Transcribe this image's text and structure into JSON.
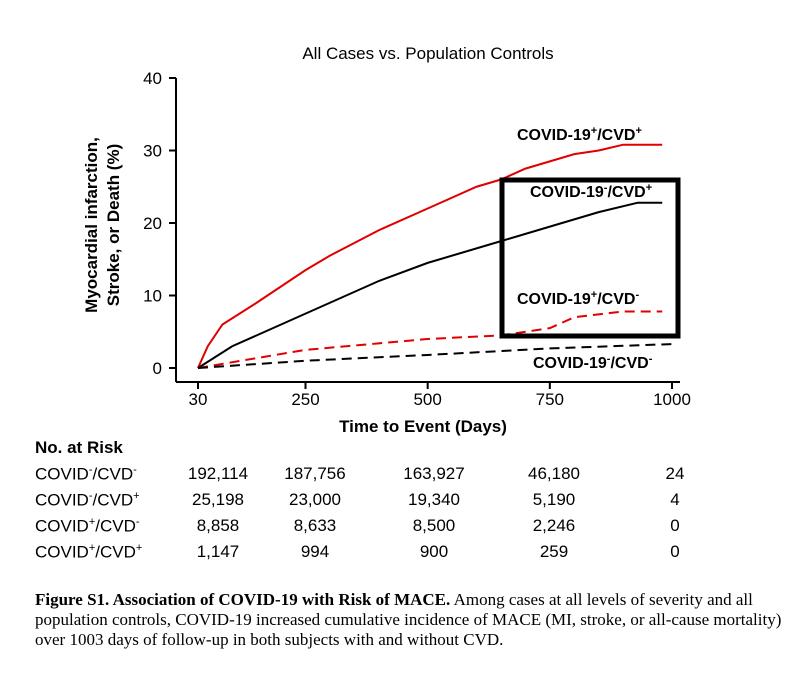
{
  "chart_data": {
    "type": "line",
    "title": "All Cases vs. Population Controls",
    "xlabel": "Time to Event (Days)",
    "ylabel_lines": [
      "Myocardial infarction,",
      "Stroke, or Death (%)"
    ],
    "xlim": [
      30,
      1000
    ],
    "ylim": [
      0,
      40
    ],
    "xticks": [
      30,
      250,
      500,
      750,
      1000
    ],
    "yticks": [
      0,
      10,
      20,
      30,
      40
    ],
    "series": [
      {
        "name": "COVID-19+/CVD+",
        "label_base": "COVID-19",
        "sup1": "+",
        "mid": "/CVD",
        "sup2": "+",
        "color": "#e00000",
        "dash": false,
        "x": [
          30,
          50,
          80,
          150,
          250,
          300,
          400,
          500,
          600,
          650,
          700,
          750,
          800,
          850,
          900,
          980
        ],
        "y": [
          0,
          3,
          6,
          9,
          13.5,
          15.5,
          19,
          22,
          25,
          26,
          27.5,
          28.5,
          29.5,
          30,
          30.8,
          30.8
        ]
      },
      {
        "name": "COVID-19-/CVD+",
        "label_base": "COVID-19",
        "sup1": "-",
        "mid": "/CVD",
        "sup2": "+",
        "color": "#000000",
        "dash": false,
        "x": [
          30,
          100,
          250,
          400,
          500,
          650,
          750,
          850,
          930,
          980
        ],
        "y": [
          0,
          3,
          7.5,
          12,
          14.5,
          17.5,
          19.5,
          21.5,
          22.8,
          22.8
        ]
      },
      {
        "name": "COVID-19+/CVD-",
        "label_base": "COVID-19",
        "sup1": "+",
        "mid": "/CVD",
        "sup2": "-",
        "color": "#e00000",
        "dash": true,
        "x": [
          30,
          250,
          500,
          650,
          750,
          800,
          900,
          980
        ],
        "y": [
          0,
          2.5,
          4,
          4.5,
          5.5,
          7,
          7.8,
          7.8
        ]
      },
      {
        "name": "COVID-19-/CVD-",
        "label_base": "COVID-19",
        "sup1": "-",
        "mid": "/CVD",
        "sup2": "-",
        "color": "#000000",
        "dash": true,
        "x": [
          30,
          250,
          500,
          750,
          1000
        ],
        "y": [
          0,
          1,
          1.8,
          2.7,
          3.3
        ]
      }
    ]
  },
  "risk_table": {
    "heading": "No. at Risk",
    "rows": [
      {
        "a": "COVID",
        "s1": "-",
        "b": "/CVD",
        "s2": "-",
        "values": [
          "192,114",
          "187,756",
          "163,927",
          "46,180",
          "24"
        ]
      },
      {
        "a": "COVID",
        "s1": "-",
        "b": "/CVD",
        "s2": "+",
        "values": [
          "25,198",
          "23,000",
          "19,340",
          "5,190",
          "4"
        ]
      },
      {
        "a": "COVID",
        "s1": "+",
        "b": "/CVD",
        "s2": "-",
        "values": [
          "8,858",
          "8,633",
          "8,500",
          "2,246",
          "0"
        ]
      },
      {
        "a": "COVID",
        "s1": "+",
        "b": "/CVD",
        "s2": "+",
        "values": [
          "1,147",
          "994",
          "900",
          "259",
          "0"
        ]
      }
    ]
  },
  "caption": {
    "bold": "Figure S1.  Association of COVID-19 with Risk of MACE.",
    "text": "  Among cases at all levels of severity and all population controls, COVID-19 increased cumulative incidence of MACE (MI, stroke, or all-cause mortality) over 1003 days of follow-up in both subjects with and without CVD."
  }
}
